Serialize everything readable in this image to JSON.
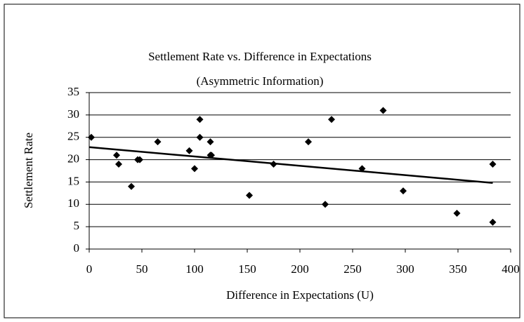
{
  "chart_data": {
    "type": "scatter",
    "title": "Settlement Rate vs. Difference in Expectations",
    "subtitle": "(Asymmetric Information)",
    "xlabel": "Difference in Expectations (U)",
    "ylabel": "Settlement Rate",
    "x": [
      2,
      26,
      28,
      40,
      46,
      48,
      65,
      95,
      100,
      105,
      105,
      115,
      115,
      116,
      152,
      175,
      208,
      224,
      230,
      259,
      279,
      298,
      349,
      383,
      383
    ],
    "values": [
      25,
      21,
      19,
      14,
      20,
      20,
      24,
      22,
      18,
      29,
      25,
      24,
      21,
      21,
      12,
      19,
      24,
      10,
      29,
      18,
      31,
      13,
      8,
      19,
      6
    ],
    "color": "#000000",
    "trendline": {
      "x": [
        0,
        383
      ],
      "y": [
        22.8,
        14.8
      ]
    },
    "xlim": [
      0,
      400
    ],
    "xticks": [
      0,
      50,
      100,
      150,
      200,
      250,
      300,
      350,
      400
    ],
    "ylim": [
      0,
      35
    ],
    "yticks": [
      0,
      5,
      10,
      15,
      20,
      25,
      30,
      35
    ],
    "grid": true
  }
}
